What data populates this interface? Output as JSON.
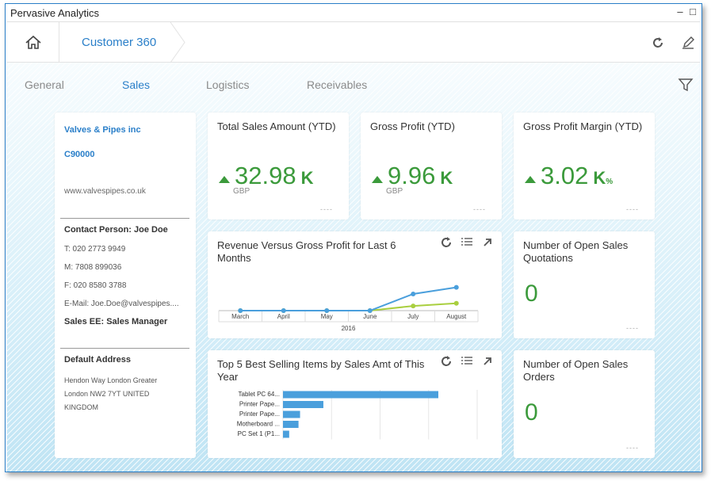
{
  "window": {
    "title": "Pervasive Analytics",
    "minimize": "–",
    "maximize": "□"
  },
  "shellbar": {
    "breadcrumb": "Customer 360"
  },
  "tabs": [
    {
      "label": "General",
      "active": false
    },
    {
      "label": "Sales",
      "active": true
    },
    {
      "label": "Logistics",
      "active": false
    },
    {
      "label": "Receivables",
      "active": false
    }
  ],
  "profile": {
    "name": "Valves & Pipes inc",
    "code": "C90000",
    "website": "www.valvespipes.co.uk",
    "contact": "Contact Person: Joe Doe",
    "phone": "T: 020 2773 9949",
    "mobile": "M: 7808 899036",
    "fax": "F: 020 8580 3788",
    "email": "E-Mail: Joe.Doe@valvespipes....",
    "sales_ee": "Sales EE: Sales Manager",
    "address_title": "Default Address",
    "address_lines": [
      "Hendon Way London Greater",
      "London NW2 7YT UNITED",
      "KINGDOM"
    ]
  },
  "kpis": [
    {
      "title": "Total Sales Amount (YTD)",
      "value": "32.98",
      "scale": "K",
      "suffix": "",
      "unit": "GBP",
      "trend": "up",
      "footer": "----"
    },
    {
      "title": "Gross Profit (YTD)",
      "value": "9.96",
      "scale": "K",
      "suffix": "",
      "unit": "GBP",
      "trend": "up",
      "footer": "----"
    },
    {
      "title": "Gross Profit Margin (YTD)",
      "value": "3.02",
      "scale": "K",
      "suffix": "%",
      "unit": "",
      "trend": "up",
      "footer": "----"
    }
  ],
  "counts": [
    {
      "title": "Number of Open Sales Quotations",
      "value": "0",
      "footer": "----"
    },
    {
      "title": "Number of Open Sales Orders",
      "value": "0",
      "footer": "----"
    }
  ],
  "colors": {
    "accent": "#2a7fc9",
    "positive": "#3b9a3b",
    "series_blue": "#4a9fdc",
    "series_green": "#a9cf3f"
  },
  "chart_data": [
    {
      "type": "line",
      "title": "Revenue Versus Gross Profit for Last 6 Months",
      "categories": [
        "March",
        "April",
        "May",
        "June",
        "July",
        "August"
      ],
      "group_label": "2016",
      "series": [
        {
          "values": [
            0,
            0,
            0,
            0,
            12.5,
            17.5
          ],
          "color": "#4a9fdc"
        },
        {
          "values": [
            0,
            0,
            0,
            0,
            3.5,
            5.5
          ],
          "color": "#a9cf3f"
        }
      ],
      "ylim": [
        0,
        25
      ],
      "grid": false
    },
    {
      "type": "bar",
      "orientation": "horizontal",
      "title": "Top 5 Best Selling Items by Sales Amt of This Year",
      "categories": [
        "Tablet PC 64...",
        "Printer Pape...",
        "Printer Pape...",
        "Motherboard ...",
        "PC Set 1 (P1..."
      ],
      "values": [
        100,
        26,
        11,
        10,
        4
      ],
      "xlim": [
        0,
        125
      ],
      "color": "#4a9fdc"
    }
  ]
}
